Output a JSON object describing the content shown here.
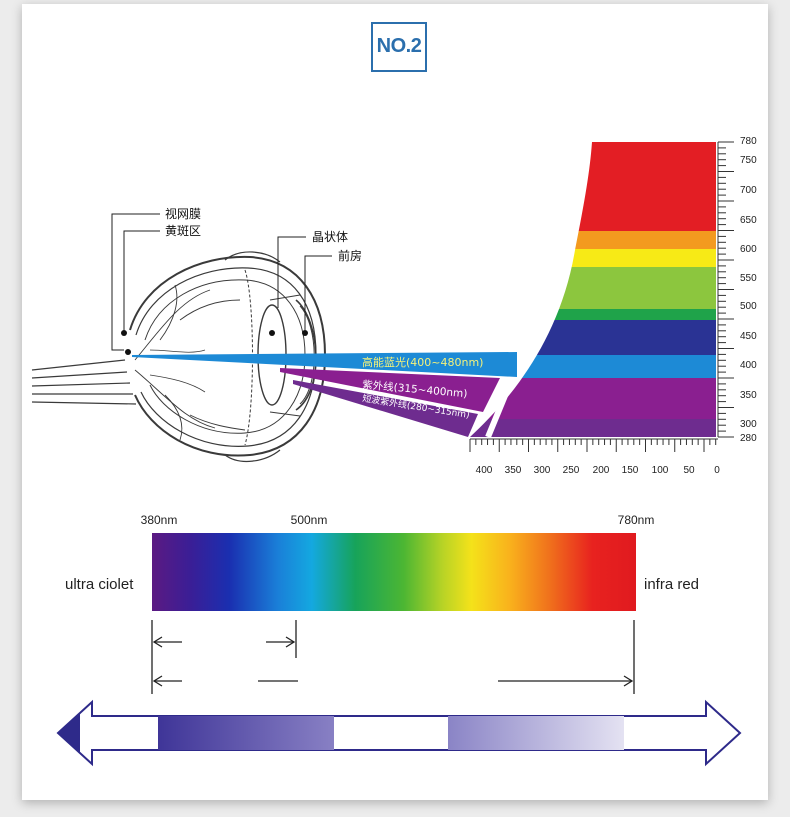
{
  "badge": {
    "label": "NO.2"
  },
  "eye_labels": {
    "retina": "视网膜",
    "macula": "黄斑区",
    "lens": "晶状体",
    "anterior_chamber": "前房"
  },
  "beams": {
    "blue_light": "高能蓝光(400~480nm)",
    "uv": "紫外线(315~400nm)",
    "short_uv": "短波紫外线(280~315nm)"
  },
  "right_axis": {
    "ticks": [
      "780",
      "750",
      "700",
      "650",
      "600",
      "550",
      "500",
      "450",
      "400",
      "350",
      "300",
      "280"
    ]
  },
  "bottom_axis": {
    "ticks": [
      "400",
      "350",
      "300",
      "250",
      "200",
      "150",
      "100",
      "50",
      "0"
    ]
  },
  "spectrum": {
    "start_label": "380nm",
    "mid_label": "500nm",
    "end_label": "780nm",
    "left_label": "ultra ciolet",
    "right_label": "infra red"
  },
  "colors": {
    "badge": "#2b6fad",
    "arrow_outline": "#2e2a8a",
    "blue_beam": "#1d8ad6",
    "uv_beam": "#7c1f9b"
  }
}
